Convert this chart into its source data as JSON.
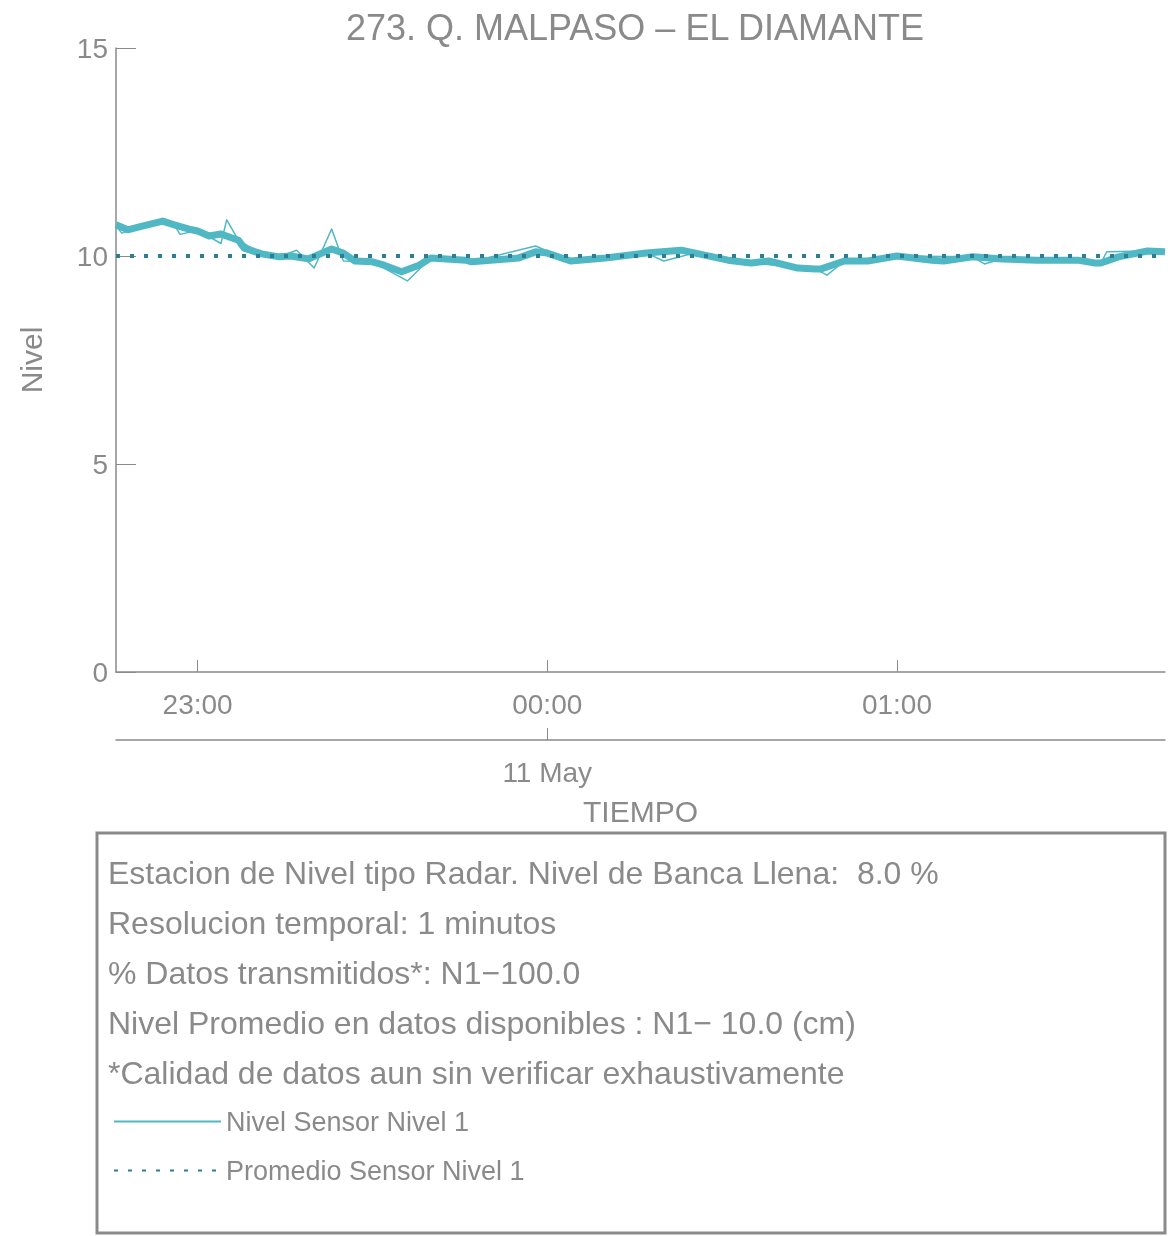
{
  "chart_data": {
    "type": "line",
    "title": "273. Q. MALPASO – EL DIAMANTE",
    "xlabel": "TIEMPO",
    "ylabel": "Nivel",
    "xlim": [
      "--05-10T22:46",
      "--05-11T01:46"
    ],
    "xticks": [
      {
        "value": "--05-10T23:00",
        "label": "23:00"
      },
      {
        "value": "--05-11T00:00",
        "label": "00:00"
      },
      {
        "value": "--05-11T01:00",
        "label": "01:00"
      }
    ],
    "ylim": [
      0,
      15
    ],
    "yticks": [
      0,
      5,
      10,
      15
    ],
    "grid": false,
    "legend": "bottom left",
    "marker": "none",
    "annotations": [
      {
        "text": "11 May",
        "x": "--05-11"
      },
      "Estacion de Nivel tipo Radar. Nivel de Banca Llena:  8.0 %",
      "Resolucion temporal: 1 minutos",
      "% Datos transmitidos*: N1−100.0",
      "Nivel Promedio en datos disponibles : N1− 10.0 (cm)",
      "*Calidad de datos aun sin verificar exhaustivamente"
    ],
    "series": [
      {
        "name": "Nivel Sensor Nivel 1",
        "color": "#4fb8c4",
        "line_style": "solid",
        "x": [
          "--05-10T22:46",
          "--05-10T22:48",
          "--05-10T22:50",
          "--05-10T22:54",
          "--05-10T22:56",
          "--05-10T22:59",
          "--05-10T23:00",
          "--05-10T23:02",
          "--05-10T23:04",
          "--05-10T23:07",
          "--05-10T23:08",
          "--05-10T23:11",
          "--05-10T23:14",
          "--05-10T23:16",
          "--05-10T23:19",
          "--05-10T23:23",
          "--05-10T23:25",
          "--05-10T23:27",
          "--05-10T23:30",
          "--05-10T23:32",
          "--05-10T23:35",
          "--05-10T23:38",
          "--05-10T23:40",
          "--05-10T23:46",
          "--05-10T23:47",
          "--05-10T23:55",
          "--05-10T23:58",
          "--05-11T00:00",
          "--05-11T00:04",
          "--05-11T00:10",
          "--05-11T00:17",
          "--05-11T00:23",
          "--05-11T00:26",
          "--05-11T00:31",
          "--05-11T00:35",
          "--05-11T00:38",
          "--05-11T00:43",
          "--05-11T00:46",
          "--05-11T00:47",
          "--05-11T00:51",
          "--05-11T00:55",
          "--05-11T01:00",
          "--05-11T01:06",
          "--05-11T01:08",
          "--05-11T01:13",
          "--05-11T01:18",
          "--05-11T01:24",
          "--05-11T01:31",
          "--05-11T01:34",
          "--05-11T01:35",
          "--05-11T01:38",
          "--05-11T01:43",
          "--05-11T01:46"
        ],
        "values": [
          10.75,
          10.63,
          10.7,
          10.84,
          10.75,
          10.63,
          10.6,
          10.48,
          10.53,
          10.38,
          10.19,
          10.05,
          9.98,
          10,
          9.93,
          10.17,
          10.07,
          9.88,
          9.86,
          9.78,
          9.62,
          9.78,
          9.95,
          9.9,
          9.86,
          9.95,
          10.1,
          10.07,
          9.88,
          9.95,
          10.07,
          10.14,
          10.05,
          9.9,
          9.83,
          9.88,
          9.71,
          9.69,
          9.69,
          9.88,
          9.88,
          10,
          9.9,
          9.88,
          9.98,
          9.93,
          9.9,
          9.9,
          9.83,
          9.83,
          9.98,
          10.12,
          10.1
        ]
      },
      {
        "color": "#4fb8c4",
        "line_style": "solid",
        "x": [
          "--05-10T22:46",
          "--05-10T22:47",
          "--05-10T22:50",
          "--05-10T22:54",
          "--05-10T22:56",
          "--05-10T22:57",
          "--05-10T23:00",
          "--05-10T23:04",
          "--05-10T23:05",
          "--05-10T23:07",
          "--05-10T23:11",
          "--05-10T23:14",
          "--05-10T23:17",
          "--05-10T23:20",
          "--05-10T23:23",
          "--05-10T23:25",
          "--05-10T23:30",
          "--05-10T23:36",
          "--05-10T23:40",
          "--05-10T23:47",
          "--05-10T23:58",
          "--05-11T00:04",
          "--05-11T00:17",
          "--05-11T00:20",
          "--05-11T00:26",
          "--05-11T00:35",
          "--05-11T00:46",
          "--05-11T00:48",
          "--05-11T00:51",
          "--05-11T01:00",
          "--05-11T01:13",
          "--05-11T01:15",
          "--05-11T01:18",
          "--05-11T01:35",
          "--05-11T01:36",
          "--05-11T01:43",
          "--05-11T01:46"
        ],
        "values": [
          10.72,
          10.55,
          10.7,
          10.88,
          10.75,
          10.52,
          10.62,
          10.3,
          10.87,
          10.38,
          10.05,
          9.98,
          10.14,
          9.71,
          10.65,
          9.88,
          9.86,
          9.4,
          9.95,
          9.86,
          10.24,
          9.88,
          10.07,
          9.88,
          10.1,
          9.83,
          9.69,
          9.54,
          9.88,
          10,
          9.98,
          9.81,
          9.93,
          9.83,
          10.1,
          10.12,
          10.1
        ]
      },
      {
        "name": "Promedio Sensor Nivel 1",
        "color": "#2e7d95",
        "line_style": "dotted",
        "x": [
          "--05-10T22:46",
          "--05-11T01:46"
        ],
        "values": [
          10,
          10
        ]
      }
    ]
  }
}
